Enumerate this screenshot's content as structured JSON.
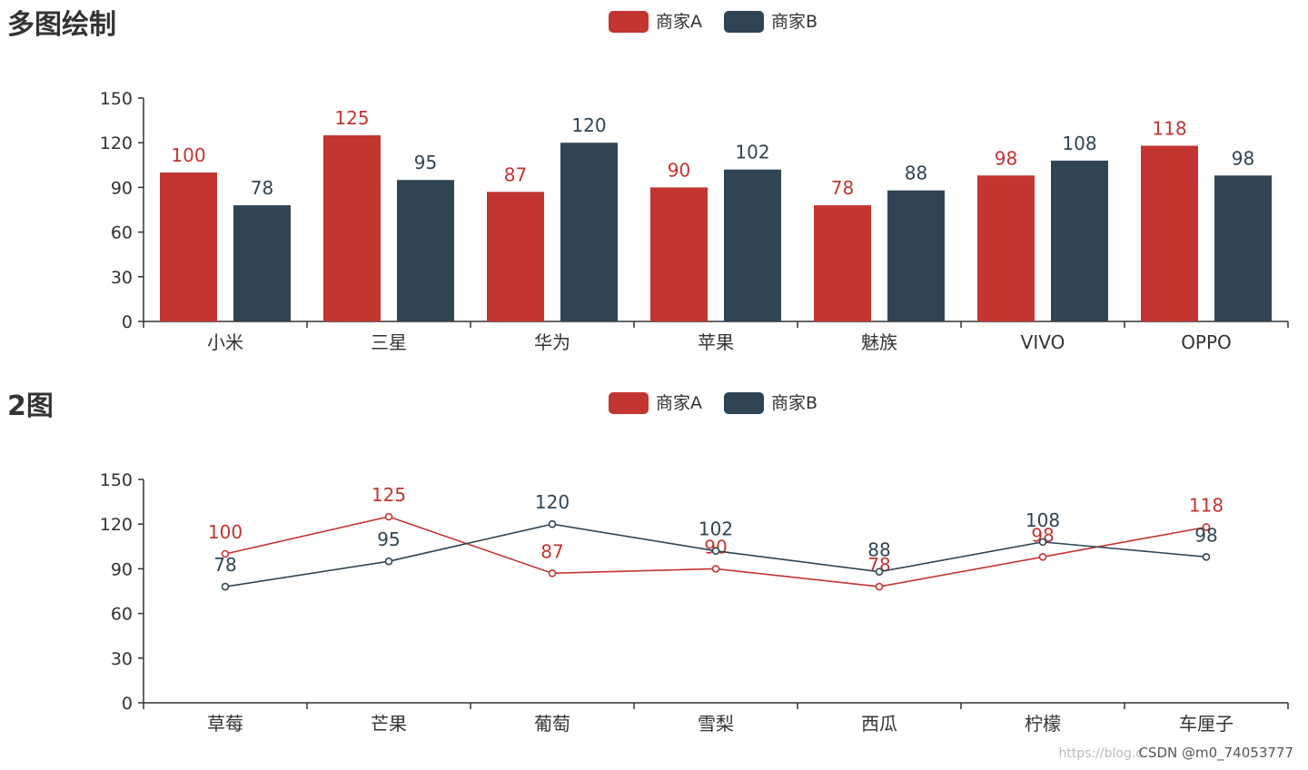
{
  "colors": {
    "seriesA": "#c23531",
    "seriesB": "#2f4554",
    "axis": "#333333"
  },
  "watermark": {
    "site": "https://blog.c",
    "user": "CSDN @m0_74053777"
  },
  "chart_data": [
    {
      "type": "bar",
      "title": "多图绘制",
      "categories": [
        "小米",
        "三星",
        "华为",
        "苹果",
        "魅族",
        "VIVO",
        "OPPO"
      ],
      "series": [
        {
          "name": "商家A",
          "values": [
            100,
            125,
            87,
            90,
            78,
            98,
            118
          ]
        },
        {
          "name": "商家B",
          "values": [
            78,
            95,
            120,
            102,
            88,
            108,
            98
          ]
        }
      ],
      "yticks": [
        0,
        30,
        60,
        90,
        120,
        150
      ],
      "ylim": [
        0,
        150
      ],
      "legend": "top-center"
    },
    {
      "type": "line",
      "title": "2图",
      "categories": [
        "草莓",
        "芒果",
        "葡萄",
        "雪梨",
        "西瓜",
        "柠檬",
        "车厘子"
      ],
      "series": [
        {
          "name": "商家A",
          "values": [
            100,
            125,
            87,
            90,
            78,
            98,
            118
          ]
        },
        {
          "name": "商家B",
          "values": [
            78,
            95,
            120,
            102,
            88,
            108,
            98
          ]
        }
      ],
      "yticks": [
        0,
        30,
        60,
        90,
        120,
        150
      ],
      "ylim": [
        0,
        150
      ],
      "legend": "top-center"
    }
  ]
}
